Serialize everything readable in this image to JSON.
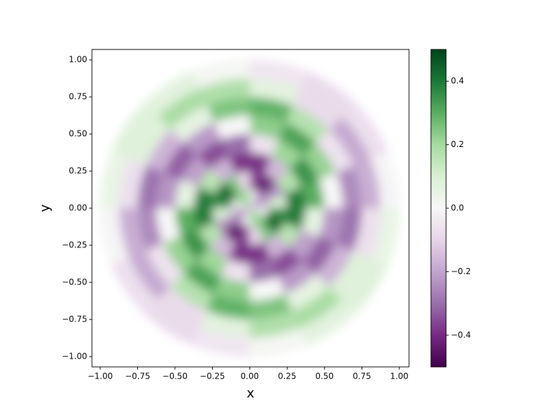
{
  "chart_data": {
    "type": "polar_heatmap",
    "xlabel": "x",
    "ylabel": "y",
    "xlim": [
      -1.055,
      1.065
    ],
    "ylim": [
      -1.07,
      1.07
    ],
    "xticks": [
      {
        "value": -1,
        "label": "−1.00"
      },
      {
        "value": -0.75,
        "label": "−0.75"
      },
      {
        "value": -0.5,
        "label": "−0.50"
      },
      {
        "value": -0.25,
        "label": "−0.25"
      },
      {
        "value": 0,
        "label": "0.00"
      },
      {
        "value": 0.25,
        "label": "0.25"
      },
      {
        "value": 0.5,
        "label": "0.50"
      },
      {
        "value": 0.75,
        "label": "0.75"
      },
      {
        "value": 1,
        "label": "1.00"
      }
    ],
    "yticks": [
      {
        "value": -1,
        "label": "−1.00"
      },
      {
        "value": -0.75,
        "label": "−0.75"
      },
      {
        "value": -0.5,
        "label": "−0.50"
      },
      {
        "value": -0.25,
        "label": "−0.25"
      },
      {
        "value": 0,
        "label": "0.00"
      },
      {
        "value": 0.25,
        "label": "0.25"
      },
      {
        "value": 0.5,
        "label": "0.50"
      },
      {
        "value": 0.75,
        "label": "0.75"
      },
      {
        "value": 1,
        "label": "1.00"
      }
    ],
    "r_edges": [
      0,
      0.125,
      0.25,
      0.375,
      0.5,
      0.625,
      0.75,
      0.875,
      1
    ],
    "theta_edges": [
      0,
      22.5,
      45,
      67.5,
      90,
      112.5,
      135,
      157.5,
      180,
      202.5,
      225,
      247.5,
      270,
      292.5,
      315,
      337.5,
      360
    ],
    "values": [
      [
        -0.18,
        -0.25,
        -0.18,
        0.0,
        0.18,
        0.25,
        0.18,
        0.0,
        -0.18,
        -0.25,
        -0.18,
        0.0,
        0.18,
        0.25,
        0.18,
        0.0
      ],
      [
        0.09,
        -0.25,
        -0.44,
        -0.37,
        -0.09,
        0.25,
        0.44,
        0.37,
        0.09,
        -0.25,
        -0.44,
        -0.37,
        -0.09,
        0.25,
        0.44,
        0.37
      ],
      [
        0.39,
        0.17,
        -0.16,
        -0.39,
        -0.39,
        -0.17,
        0.16,
        0.39,
        0.39,
        0.17,
        -0.16,
        -0.39,
        -0.39,
        -0.17,
        0.16,
        0.39
      ],
      [
        0.3,
        0.35,
        0.21,
        -0.06,
        -0.3,
        -0.35,
        -0.21,
        0.06,
        0.3,
        0.35,
        0.21,
        -0.06,
        -0.3,
        -0.35,
        -0.21,
        0.06
      ],
      [
        0.0,
        0.22,
        0.32,
        0.23,
        0.0,
        -0.22,
        -0.32,
        -0.23,
        0.0,
        0.22,
        0.32,
        0.23,
        0.0,
        -0.22,
        -0.32,
        -0.23
      ],
      [
        -0.25,
        -0.06,
        0.17,
        0.29,
        0.25,
        0.06,
        -0.17,
        -0.29,
        -0.25,
        -0.06,
        0.17,
        0.29,
        0.25,
        0.06,
        -0.17,
        -0.29
      ],
      [
        -0.18,
        -0.19,
        -0.08,
        0.07,
        0.18,
        0.19,
        0.08,
        -0.07,
        -0.18,
        -0.19,
        -0.08,
        0.07,
        0.18,
        0.19,
        0.08,
        -0.07
      ],
      [
        -0.01,
        -0.07,
        -0.08,
        -0.05,
        0.01,
        0.07,
        0.08,
        0.05,
        -0.01,
        -0.07,
        -0.08,
        -0.05,
        0.01,
        0.07,
        0.08,
        0.05
      ]
    ],
    "colorscale": [
      "#40004b",
      "#762a83",
      "#9970ab",
      "#c2a5cf",
      "#e7d4e8",
      "#f7f7f7",
      "#d9f0d3",
      "#a6dba0",
      "#5aae61",
      "#1b7837",
      "#00441b"
    ],
    "clim": [
      -0.5,
      0.5
    ],
    "cticks": [
      {
        "value": -0.4,
        "label": "−0.4"
      },
      {
        "value": -0.2,
        "label": "−0.2"
      },
      {
        "value": 0,
        "label": "0.0"
      },
      0.2,
      0.4
    ]
  }
}
